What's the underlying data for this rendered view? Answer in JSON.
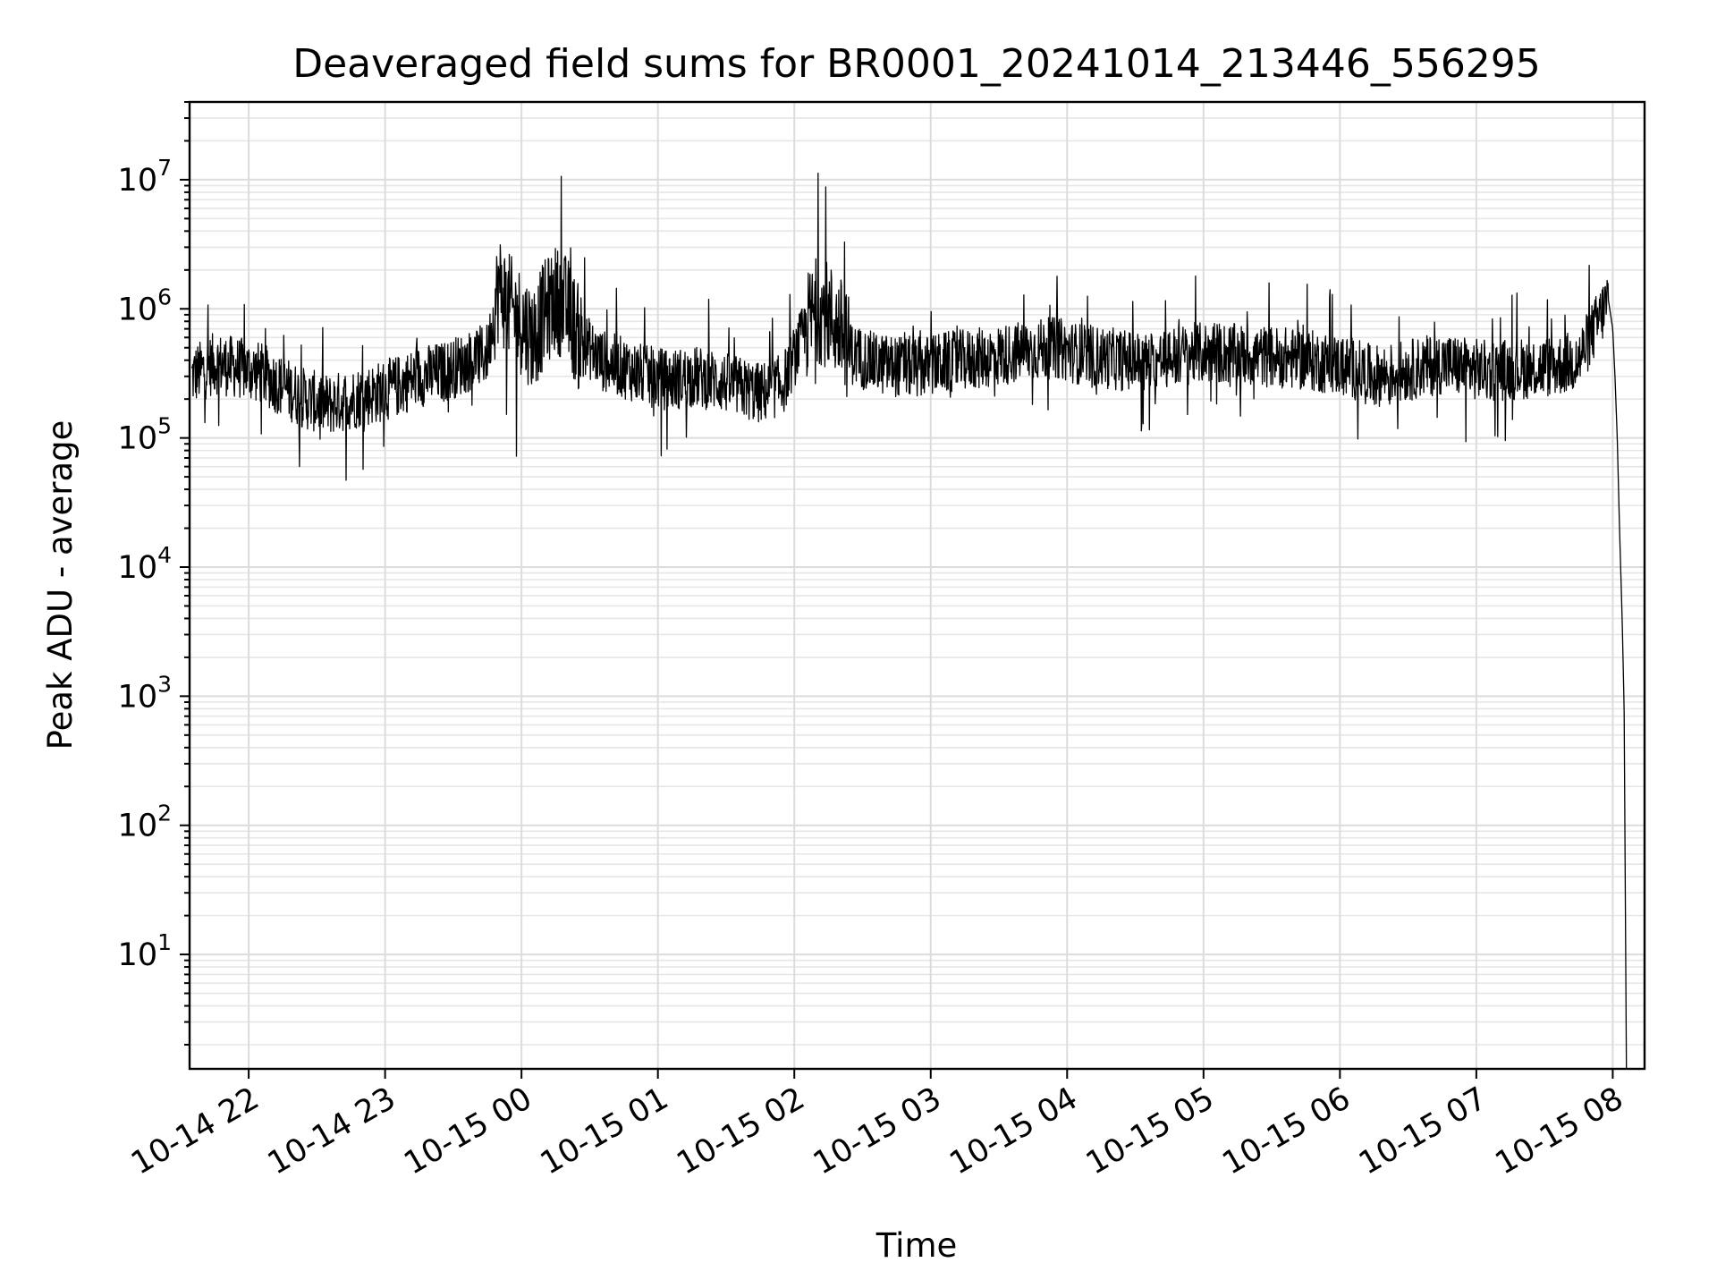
{
  "chart_data": {
    "type": "line",
    "title": "Deaveraged field sums for BR0001_20241014_213446_556295",
    "xlabel": "Time",
    "ylabel": "Peak ADU - average",
    "x_scale": "time",
    "y_scale": "log",
    "xlim": [
      "2024-10-14 21:34",
      "2024-10-15 08:14"
    ],
    "ylim": [
      1.3,
      40000000
    ],
    "grid": true,
    "x_ticks": [
      "10-14 22",
      "10-14 23",
      "10-15 00",
      "10-15 01",
      "10-15 02",
      "10-15 03",
      "10-15 04",
      "10-15 05",
      "10-15 06",
      "10-15 07",
      "10-15 08"
    ],
    "y_ticks": [
      {
        "base": "10",
        "exp": "1",
        "value": 10
      },
      {
        "base": "10",
        "exp": "2",
        "value": 100
      },
      {
        "base": "10",
        "exp": "3",
        "value": 1000
      },
      {
        "base": "10",
        "exp": "4",
        "value": 10000
      },
      {
        "base": "10",
        "exp": "5",
        "value": 100000
      },
      {
        "base": "10",
        "exp": "6",
        "value": 1000000
      },
      {
        "base": "10",
        "exp": "7",
        "value": 10000000
      }
    ],
    "series": [
      {
        "color": "#000000",
        "x": [
          "2024-10-14 21:35",
          "2024-10-14 21:45",
          "2024-10-14 21:55",
          "2024-10-14 22:05",
          "2024-10-14 22:15",
          "2024-10-14 22:25",
          "2024-10-14 22:35",
          "2024-10-14 22:45",
          "2024-10-14 22:55",
          "2024-10-14 23:05",
          "2024-10-14 23:15",
          "2024-10-14 23:25",
          "2024-10-14 23:35",
          "2024-10-14 23:45",
          "2024-10-14 23:50",
          "2024-10-14 23:55",
          "2024-10-15 00:00",
          "2024-10-15 00:05",
          "2024-10-15 00:10",
          "2024-10-15 00:15",
          "2024-10-15 00:20",
          "2024-10-15 00:25",
          "2024-10-15 00:35",
          "2024-10-15 00:45",
          "2024-10-15 00:55",
          "2024-10-15 01:05",
          "2024-10-15 01:15",
          "2024-10-15 01:25",
          "2024-10-15 01:35",
          "2024-10-15 01:45",
          "2024-10-15 01:55",
          "2024-10-15 02:05",
          "2024-10-15 02:10",
          "2024-10-15 02:15",
          "2024-10-15 02:20",
          "2024-10-15 02:25",
          "2024-10-15 02:35",
          "2024-10-15 02:45",
          "2024-10-15 02:55",
          "2024-10-15 03:05",
          "2024-10-15 03:15",
          "2024-10-15 03:25",
          "2024-10-15 03:35",
          "2024-10-15 03:45",
          "2024-10-15 03:55",
          "2024-10-15 04:05",
          "2024-10-15 04:15",
          "2024-10-15 04:25",
          "2024-10-15 04:35",
          "2024-10-15 04:45",
          "2024-10-15 04:55",
          "2024-10-15 05:05",
          "2024-10-15 05:15",
          "2024-10-15 05:25",
          "2024-10-15 05:35",
          "2024-10-15 05:45",
          "2024-10-15 05:55",
          "2024-10-15 06:05",
          "2024-10-15 06:15",
          "2024-10-15 06:25",
          "2024-10-15 06:35",
          "2024-10-15 06:45",
          "2024-10-15 06:55",
          "2024-10-15 07:05",
          "2024-10-15 07:15",
          "2024-10-15 07:25",
          "2024-10-15 07:35",
          "2024-10-15 07:45",
          "2024-10-15 07:50",
          "2024-10-15 07:55",
          "2024-10-15 07:58",
          "2024-10-15 08:00",
          "2024-10-15 08:01",
          "2024-10-15 08:02",
          "2024-10-15 08:03",
          "2024-10-15 08:04",
          "2024-10-15 08:05",
          "2024-10-15 08:06"
        ],
        "y": [
          300000,
          380000,
          350000,
          320000,
          250000,
          200000,
          180000,
          200000,
          220000,
          250000,
          300000,
          320000,
          380000,
          450000,
          1500000,
          1000000,
          800000,
          600000,
          900000,
          1200000,
          1000000,
          600000,
          400000,
          350000,
          300000,
          280000,
          300000,
          280000,
          250000,
          220000,
          260000,
          700000,
          1000000,
          900000,
          700000,
          450000,
          380000,
          360000,
          350000,
          380000,
          400000,
          420000,
          450000,
          480000,
          500000,
          450000,
          420000,
          400000,
          380000,
          420000,
          450000,
          460000,
          440000,
          430000,
          420000,
          400000,
          380000,
          350000,
          300000,
          320000,
          350000,
          380000,
          350000,
          330000,
          340000,
          350000,
          360000,
          400000,
          600000,
          900000,
          1200000,
          700000,
          300000,
          100000,
          20000,
          5000,
          800,
          1.3
        ]
      }
    ]
  }
}
